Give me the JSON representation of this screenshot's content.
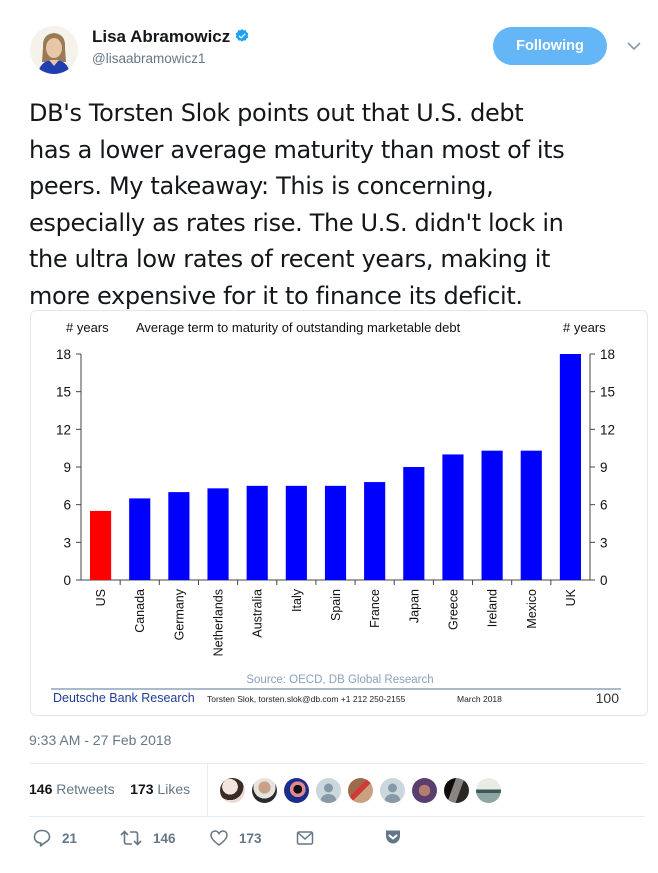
{
  "author": {
    "name": "Lisa Abramowicz",
    "handle": "@lisaabramowicz1",
    "verified_icon": "verified-badge-icon",
    "avatar": "profile-photo"
  },
  "follow_button": {
    "label": "Following"
  },
  "menu_caret": "chevron-down-icon",
  "tweet": {
    "text": "DB's Torsten Slok points out that U.S. debt\nhas a lower average maturity than most of its\npeers. My takeaway: This is concerning,\nespecially as rates rise. The U.S. didn't lock in\nthe ultra low rates of recent years, making it\nmore expensive for it to finance its deficit.",
    "timestamp": "9:33 AM - 27 Feb 2018"
  },
  "stats": {
    "retweets_count": "146",
    "retweets_label": "Retweets",
    "likes_count": "173",
    "likes_label": "Likes",
    "liker_avatars": 9
  },
  "actions": {
    "reply": {
      "icon": "reply-icon",
      "count": "21"
    },
    "retweet": {
      "icon": "retweet-icon",
      "count": "146"
    },
    "like": {
      "icon": "heart-icon",
      "count": "173"
    },
    "message": {
      "icon": "envelope-icon"
    },
    "pocket": {
      "icon": "pocket-icon"
    }
  },
  "colors": {
    "us_bar": "#ff0000",
    "other_bars": "#0000ff",
    "follow_button": "#64b6f6",
    "verified": "#1da1f2",
    "db_blue": "#1f3c99"
  },
  "chart_data": {
    "type": "bar",
    "title": "Average term to maturity of outstanding marketable debt",
    "ylabel_left": "# years",
    "ylabel_right": "# years",
    "xlabel": "",
    "ylim": [
      0,
      18
    ],
    "yticks": [
      0,
      3,
      6,
      9,
      12,
      15,
      18
    ],
    "grid": false,
    "categories": [
      "US",
      "Canada",
      "Germany",
      "Netherlands",
      "Australia",
      "Italy",
      "Spain",
      "France",
      "Japan",
      "Greece",
      "Ireland",
      "Mexico",
      "UK"
    ],
    "values": [
      5.5,
      6.5,
      7.0,
      7.3,
      7.5,
      7.5,
      7.5,
      7.8,
      9.0,
      10.0,
      10.3,
      10.3,
      18.0
    ],
    "highlight": "US",
    "source": "Source: OECD, DB Global Research",
    "footer": {
      "brand": "Deutsche Bank Research",
      "author": "Torsten Slok, torsten.slok@db.com  +1 212 250-2155",
      "date": "March 2018",
      "page": "100"
    }
  }
}
